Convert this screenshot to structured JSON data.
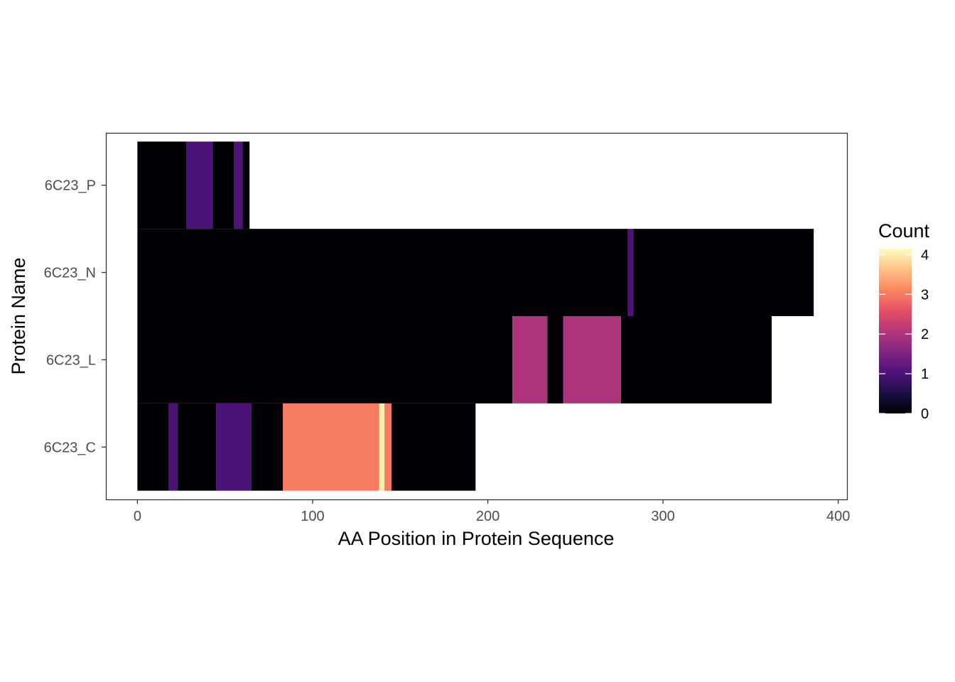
{
  "chart_data": {
    "type": "heatmap",
    "title": "",
    "xlabel": "AA Position in Protein Sequence",
    "ylabel": "Protein Name",
    "xlim": [
      -18,
      405
    ],
    "x_ticks": [
      0,
      100,
      200,
      300,
      400
    ],
    "y_categories": [
      "6C23_P",
      "6C23_N",
      "6C23_L",
      "6C23_C"
    ],
    "grid": false,
    "legend": {
      "title": "Count",
      "position": "right",
      "range": [
        0,
        4.15
      ],
      "ticks": [
        0,
        1,
        2,
        3,
        4
      ],
      "palette": [
        "#000004",
        "#1c1044",
        "#4f127b",
        "#812581",
        "#b5367a",
        "#e55064",
        "#fb8761",
        "#fec287",
        "#fcfdbf"
      ]
    },
    "series": [
      {
        "name": "6C23_P",
        "segments": [
          {
            "start": 0,
            "end": 28,
            "count": 0
          },
          {
            "start": 28,
            "end": 43,
            "count": 1
          },
          {
            "start": 43,
            "end": 55,
            "count": 0
          },
          {
            "start": 55,
            "end": 60,
            "count": 1
          },
          {
            "start": 60,
            "end": 64,
            "count": 0
          }
        ]
      },
      {
        "name": "6C23_N",
        "segments": [
          {
            "start": 0,
            "end": 280,
            "count": 0
          },
          {
            "start": 280,
            "end": 283,
            "count": 1
          },
          {
            "start": 283,
            "end": 386,
            "count": 0
          }
        ]
      },
      {
        "name": "6C23_L",
        "segments": [
          {
            "start": 0,
            "end": 214,
            "count": 0
          },
          {
            "start": 214,
            "end": 234,
            "count": 2
          },
          {
            "start": 234,
            "end": 243,
            "count": 0
          },
          {
            "start": 243,
            "end": 276,
            "count": 2
          },
          {
            "start": 276,
            "end": 362,
            "count": 0
          }
        ]
      },
      {
        "name": "6C23_C",
        "segments": [
          {
            "start": 0,
            "end": 18,
            "count": 0
          },
          {
            "start": 18,
            "end": 23,
            "count": 1
          },
          {
            "start": 23,
            "end": 45,
            "count": 0
          },
          {
            "start": 45,
            "end": 65,
            "count": 1
          },
          {
            "start": 65,
            "end": 83,
            "count": 0
          },
          {
            "start": 83,
            "end": 138,
            "count": 3
          },
          {
            "start": 138,
            "end": 141,
            "count": 4
          },
          {
            "start": 141,
            "end": 145,
            "count": 3
          },
          {
            "start": 145,
            "end": 193,
            "count": 0
          }
        ]
      }
    ]
  }
}
